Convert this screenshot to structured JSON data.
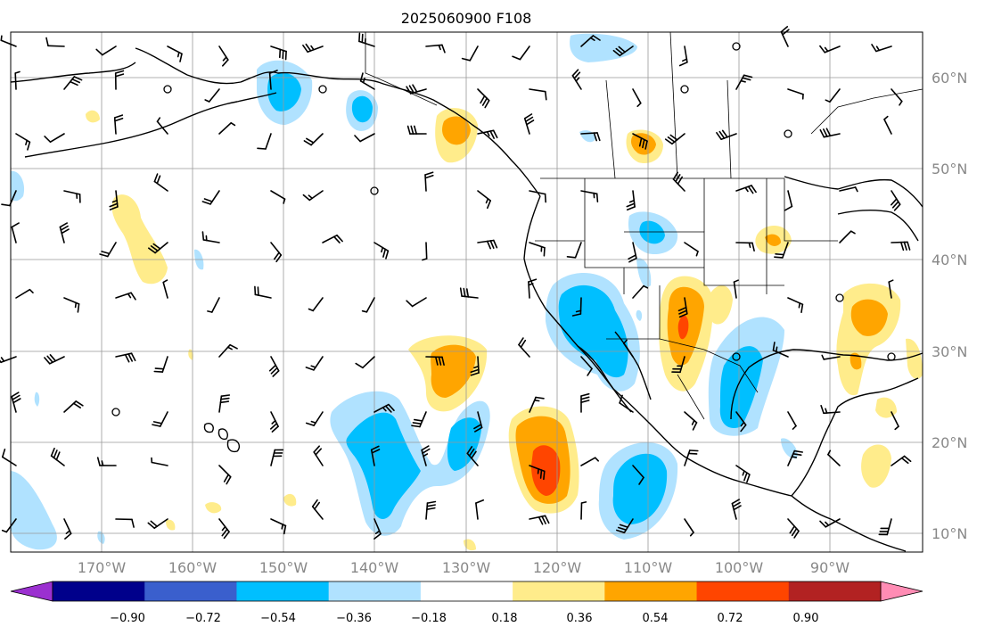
{
  "title": "2025060900 F108",
  "map": {
    "lat_labels": [
      "60°N",
      "50°N",
      "40°N",
      "30°N",
      "20°N",
      "10°N"
    ],
    "lon_labels": [
      "170°W",
      "160°W",
      "150°W",
      "140°W",
      "130°W",
      "120°W",
      "110°W",
      "100°W",
      "90°W"
    ]
  },
  "colorbar": {
    "ticks": [
      "−0.90",
      "−0.72",
      "−0.54",
      "−0.36",
      "−0.18",
      "0.18",
      "0.36",
      "0.54",
      "0.72",
      "0.90"
    ],
    "colors": [
      "#9b30d0",
      "#00008b",
      "#3a5fcd",
      "#00bfff",
      "#b0e2ff",
      "#ffffff",
      "#ffec8b",
      "#ffa500",
      "#ff4500",
      "#b22222",
      "#ff8cb4"
    ]
  },
  "field_colors": {
    "neg_light": "#b0e2ff",
    "neg_mid": "#00bfff",
    "pos_light": "#ffec8b",
    "pos_mid": "#ffa500",
    "pos_strong": "#ff4500"
  }
}
